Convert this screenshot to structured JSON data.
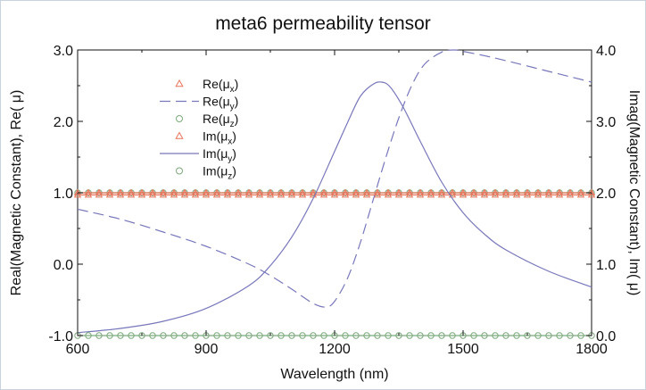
{
  "chart_data": {
    "type": "line",
    "title": "meta6 permeability tensor",
    "xlabel": "Wavelength (nm)",
    "ylabel": "Real(Magnetic Constant), Re( μ)",
    "y2label": "Imag(Magnetic Constant), Im( μ)",
    "xlim": [
      600,
      1800
    ],
    "ylim": [
      -1.0,
      3.0
    ],
    "y2lim": [
      0.0,
      4.0
    ],
    "xticks": [
      600,
      900,
      1200,
      1500,
      1800
    ],
    "xtick_labels": [
      "600",
      "900",
      "1200",
      "1500",
      "1800"
    ],
    "yticks": [
      -1.0,
      0.0,
      1.0,
      2.0,
      3.0
    ],
    "ytick_labels": [
      "-1.0",
      "0.0",
      "1.0",
      "2.0",
      "3.0"
    ],
    "y2ticks": [
      0.0,
      1.0,
      2.0,
      3.0,
      4.0
    ],
    "y2tick_labels": [
      "0.0",
      "1.0",
      "2.0",
      "3.0",
      "4.0"
    ],
    "grid": false,
    "legend_position": "top-left",
    "series": [
      {
        "name": "Re(μx)",
        "legend_base": "Re(",
        "legend_sym": "μ",
        "legend_sub": "x",
        "axis": "left",
        "style": "triangle",
        "color": "#e8735a",
        "x": [
          600,
          1800
        ],
        "values": [
          0.97,
          0.97
        ]
      },
      {
        "name": "Re(μy)",
        "legend_base": "Re(",
        "legend_sym": "μ",
        "legend_sub": "y",
        "axis": "left",
        "style": "dashed",
        "color": "#7777bb",
        "x": [
          600,
          700,
          800,
          900,
          1000,
          1050,
          1100,
          1150,
          1180,
          1200,
          1230,
          1260,
          1290,
          1320,
          1350,
          1380,
          1410,
          1450,
          1480,
          1500,
          1550,
          1600,
          1700,
          1800
        ],
        "values": [
          0.77,
          0.63,
          0.45,
          0.25,
          0.0,
          -0.16,
          -0.35,
          -0.55,
          -0.6,
          -0.52,
          -0.2,
          0.3,
          0.9,
          1.5,
          2.05,
          2.5,
          2.8,
          2.97,
          3.0,
          2.98,
          2.92,
          2.85,
          2.7,
          2.55
        ]
      },
      {
        "name": "Re(μz)",
        "legend_base": "Re(",
        "legend_sym": "μ",
        "legend_sub": "z",
        "axis": "left",
        "style": "circle",
        "color": "#7aaa7a",
        "x": [
          600,
          1800
        ],
        "values": [
          1.0,
          1.0
        ]
      },
      {
        "name": "Im(μx)",
        "legend_base": "Im(",
        "legend_sym": "μ",
        "legend_sub": "x",
        "axis": "right",
        "style": "triangle",
        "color": "#e8735a",
        "x": [
          600,
          1800
        ],
        "values": [
          2.0,
          2.0
        ]
      },
      {
        "name": "Im(μy)",
        "legend_base": "Im(",
        "legend_sym": "μ",
        "legend_sub": "y",
        "axis": "right",
        "style": "solid",
        "color": "#7777bb",
        "x": [
          600,
          700,
          800,
          900,
          1000,
          1050,
          1100,
          1150,
          1200,
          1230,
          1260,
          1290,
          1310,
          1330,
          1360,
          1400,
          1450,
          1500,
          1550,
          1600,
          1700,
          1800
        ],
        "values": [
          0.04,
          0.1,
          0.2,
          0.38,
          0.7,
          0.98,
          1.38,
          1.92,
          2.58,
          2.98,
          3.35,
          3.52,
          3.55,
          3.48,
          3.2,
          2.72,
          2.15,
          1.72,
          1.42,
          1.2,
          0.9,
          0.68
        ]
      },
      {
        "name": "Im(μz)",
        "legend_base": "Im(",
        "legend_sym": "μ",
        "legend_sub": "z",
        "axis": "right",
        "style": "circle",
        "color": "#7aaa7a",
        "x": [
          600,
          1800
        ],
        "values": [
          0.0,
          0.0
        ]
      }
    ]
  }
}
